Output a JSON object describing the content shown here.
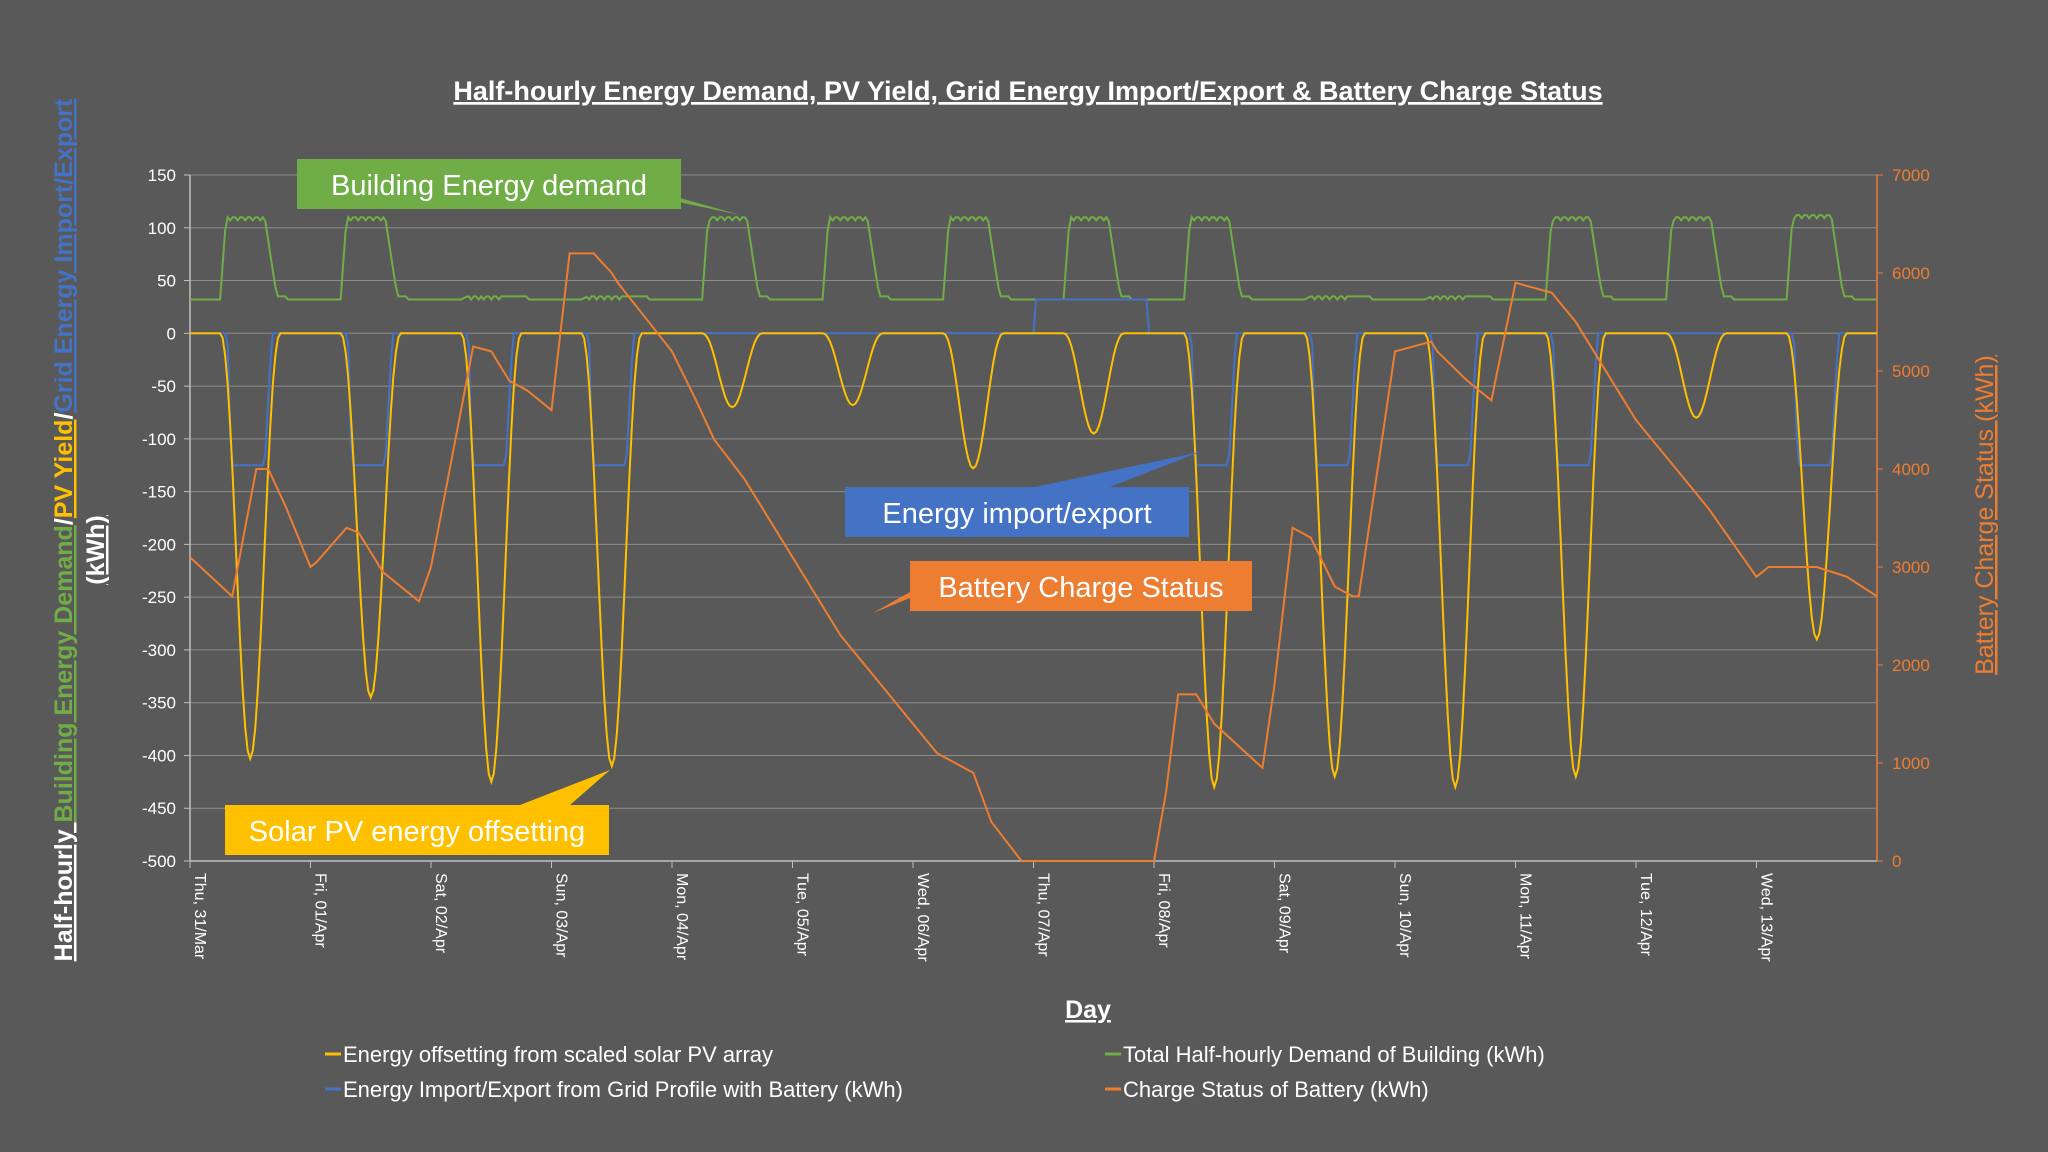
{
  "chart_data": {
    "type": "line",
    "title": "Half-hourly Energy Demand, PV Yield, Grid Energy Import/Export & Battery Charge Status",
    "xlabel": "Day",
    "ylabel_left": {
      "prefix": "Half-hourly ",
      "part1": "Building Energy Demand",
      "sep1": "/",
      "part2": "PV Yield",
      "sep2": "/",
      "part3": "Grid Energy Import/Export",
      "unit": "(kWh)"
    },
    "ylabel_right": "Battery Charge Status (kWh)",
    "ylim_left": [
      -500,
      150
    ],
    "ylim_right": [
      0,
      7000
    ],
    "xlim_days": [
      0,
      14
    ],
    "left_ticks": [
      "150",
      "100",
      "50",
      "0",
      "-50",
      "-100",
      "-150",
      "-200",
      "-250",
      "-300",
      "-350",
      "-400",
      "-450",
      "-500"
    ],
    "right_ticks": [
      "7000",
      "6000",
      "5000",
      "4000",
      "3000",
      "2000",
      "1000",
      "0"
    ],
    "x_ticks": [
      "Thu, 31/Mar",
      "Fri, 01/Apr",
      "Sat, 02/Apr",
      "Sun, 03/Apr",
      "Mon, 04/Apr",
      "Tue, 05/Apr",
      "Wed, 06/Apr",
      "Thu, 07/Apr",
      "Fri, 08/Apr",
      "Sat, 09/Apr",
      "Sun, 10/Apr",
      "Mon, 11/Apr",
      "Tue, 12/Apr",
      "Wed, 13/Apr"
    ],
    "grid": true,
    "legend_position": "bottom",
    "colors": {
      "background": "#595959",
      "demand": "#70AD47",
      "pv": "#FFC000",
      "grid": "#4472C4",
      "battery": "#ED7D31"
    },
    "series": [
      {
        "name": "Energy offsetting from scaled solar PV array",
        "axis": "left",
        "kind": "daily_profile",
        "start": 0.25,
        "end": 0.75,
        "peaks": [
          -403,
          -345,
          -425,
          -410,
          -70,
          -68,
          -128,
          -95,
          -430,
          -420,
          -430,
          -420,
          -80,
          -290
        ]
      },
      {
        "name": "Total Half-hourly Demand of Building (kWh)",
        "axis": "left",
        "kind": "daily_demand",
        "base": 32,
        "day_peaks": [
          110,
          110,
          35,
          35,
          110,
          110,
          110,
          110,
          110,
          35,
          35,
          110,
          110,
          112
        ]
      },
      {
        "name": "Energy Import/Export from Grid Profile with Battery (kWh)",
        "axis": "left",
        "kind": "grid_steps",
        "export_days": [
          0,
          1,
          2,
          3,
          8,
          9,
          10,
          11,
          13
        ],
        "export_value": -125,
        "import_days": [
          7
        ],
        "import_value": 32
      },
      {
        "name": "Charge Status of Battery (kWh)",
        "axis": "right",
        "kind": "xy",
        "x": [
          0,
          0.35,
          0.55,
          0.65,
          0.8,
          1.0,
          1.05,
          1.3,
          1.4,
          1.5,
          1.6,
          1.9,
          2.0,
          2.35,
          2.5,
          2.65,
          2.8,
          3.0,
          3.15,
          3.35,
          3.5,
          3.55,
          4.0,
          4.2,
          4.35,
          4.6,
          5.0,
          5.4,
          5.8,
          6.2,
          6.5,
          6.65,
          6.9,
          7.0,
          7.5,
          8.0,
          8.1,
          8.2,
          8.35,
          8.5,
          8.9,
          9.0,
          9.15,
          9.3,
          9.5,
          9.65,
          9.7,
          10.0,
          10.3,
          10.35,
          10.6,
          10.8,
          11.0,
          11.3,
          11.5,
          11.55,
          12.0,
          12.4,
          12.6,
          13.0,
          13.1,
          13.5,
          13.75,
          14.0
        ],
        "y": [
          3100,
          2700,
          4000,
          4000,
          3600,
          3000,
          3050,
          3400,
          3350,
          3150,
          2950,
          2650,
          3000,
          5250,
          5200,
          4900,
          4800,
          4600,
          6200,
          6200,
          6000,
          5900,
          5200,
          4700,
          4300,
          3900,
          3100,
          2300,
          1700,
          1100,
          900,
          400,
          0,
          0,
          0,
          0,
          700,
          1700,
          1700,
          1400,
          950,
          1800,
          3400,
          3300,
          2800,
          2700,
          2700,
          5200,
          5300,
          5200,
          4900,
          4700,
          5900,
          5800,
          5500,
          5400,
          4500,
          3900,
          3600,
          2900,
          3000,
          3000,
          2900,
          2700
        ]
      }
    ],
    "annotations": [
      {
        "key": "demand",
        "text": "Building Energy demand"
      },
      {
        "key": "grid",
        "text": "Energy import/export"
      },
      {
        "key": "battery",
        "text": "Battery Charge Status"
      },
      {
        "key": "pv",
        "text": "Solar PV energy offsetting"
      }
    ]
  }
}
